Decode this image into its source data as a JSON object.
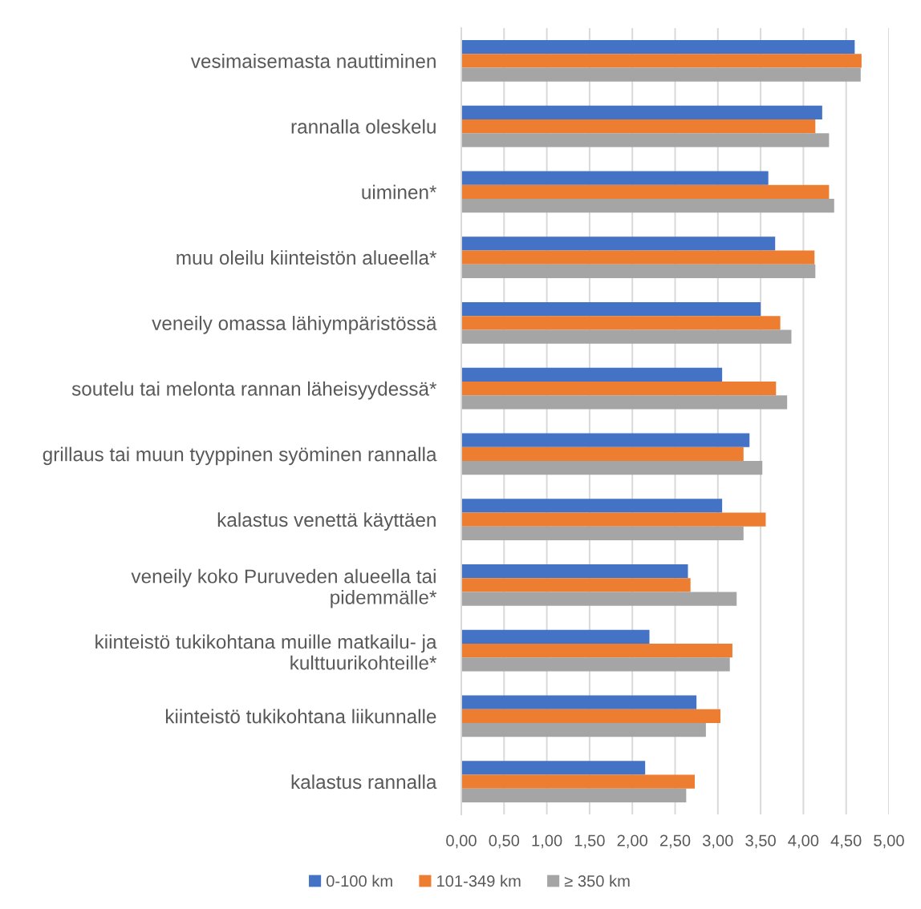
{
  "chart_data": {
    "type": "bar",
    "orientation": "horizontal",
    "categories": [
      "vesimaisemasta nauttiminen",
      "rannalla oleskelu",
      "uiminen*",
      "muu oleilu kiinteistön alueella*",
      "veneily omassa lähiympäristössä",
      "soutelu tai melonta rannan läheisyydessä*",
      "grillaus tai muun tyyppinen syöminen rannalla",
      "kalastus venettä käyttäen",
      "veneily koko Puruveden alueella tai\npidemmälle*",
      "kiinteistö tukikohtana muille matkailu- ja\nkulttuurikohteille*",
      "kiinteistö tukikohtana liikunnalle",
      "kalastus rannalla"
    ],
    "series": [
      {
        "name": "0-100 km",
        "color": "#4472c4",
        "values": [
          4.6,
          4.22,
          3.59,
          3.67,
          3.5,
          3.05,
          3.37,
          3.05,
          2.65,
          2.2,
          2.75,
          2.15
        ]
      },
      {
        "name": "101-349 km",
        "color": "#ed7d31",
        "values": [
          4.68,
          4.14,
          4.3,
          4.13,
          3.73,
          3.68,
          3.3,
          3.56,
          2.68,
          3.17,
          3.03,
          2.73
        ]
      },
      {
        "name": "≥ 350 km",
        "color": "#a5a5a5",
        "values": [
          4.67,
          4.3,
          4.36,
          4.14,
          3.86,
          3.81,
          3.52,
          3.3,
          3.22,
          3.14,
          2.86,
          2.63
        ]
      }
    ],
    "xlim": [
      0,
      5
    ],
    "xticks": [
      {
        "value": 0,
        "label": "0,00"
      },
      {
        "value": 0.5,
        "label": "0,50"
      },
      {
        "value": 1,
        "label": "1,00"
      },
      {
        "value": 1.5,
        "label": "1,50"
      },
      {
        "value": 2,
        "label": "2,00"
      },
      {
        "value": 2.5,
        "label": "2,50"
      },
      {
        "value": 3,
        "label": "3,00"
      },
      {
        "value": 3.5,
        "label": "3,50"
      },
      {
        "value": 4,
        "label": "4,00"
      },
      {
        "value": 4.5,
        "label": "4,50"
      },
      {
        "value": 5,
        "label": "5,00"
      }
    ],
    "grid": "x",
    "legend": "bottom"
  }
}
